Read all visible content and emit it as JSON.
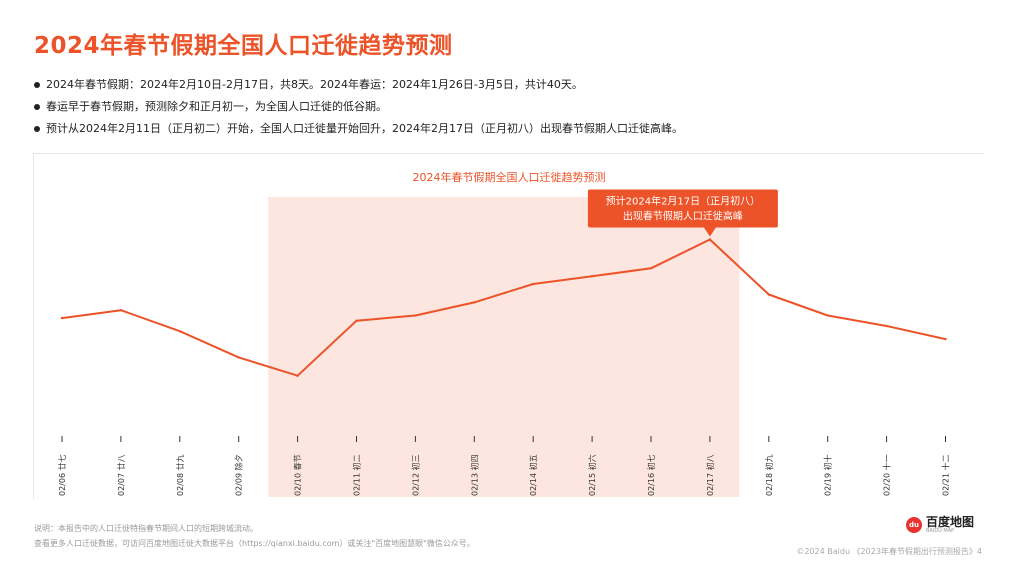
{
  "page": {
    "title": "2024年春节假期全国人口迁徙趋势预测",
    "bullets": [
      "2024年春节假期：2024年2月10日-2月17日，共8天。2024年春运：2024年1月26日-3月5日，共计40天。",
      "春运早于春节假期，预测除夕和正月初一，为全国人口迁徙的低谷期。",
      "预计从2024年2月11日（正月初二）开始，全国人口迁徙量开始回升，2024年2月17日（正月初八）出现春节假期人口迁徙高峰。"
    ],
    "footnotes": [
      "说明：本报告中的人口迁徙特指春节期间人口的短期跨城流动。",
      "查看更多人口迁徙数据，可访问百度地图迁徙大数据平台（https://qianxi.baidu.com）或关注\"百度地图慧眼\"微信公众号。"
    ],
    "logo_text": "百度地图",
    "logo_sub": "BAIDU MAP",
    "logo_mark": "du",
    "footer": "©2024 Baidu 《2023年春节假期出行预测报告》4"
  },
  "colors": {
    "accent": "#ec5328",
    "highlight_band": "#fde6df",
    "axis": "#333333"
  },
  "chart_data": {
    "type": "line",
    "title": "2024年春节假期全国人口迁徙趋势预测",
    "x": [
      "02/06 廿七",
      "02/07 廿八",
      "02/08 廿九",
      "02/09 除夕",
      "02/10 春节",
      "02/11 初二",
      "02/12 初三",
      "02/13 初四",
      "02/14 初五",
      "02/15 初六",
      "02/16 初七",
      "02/17 初八",
      "02/18 初九",
      "02/19 初十",
      "02/20 十一",
      "02/21 十二"
    ],
    "series": [
      {
        "values": [
          45,
          48,
          40,
          30,
          23,
          44,
          46,
          51,
          58,
          61,
          64,
          75,
          54,
          46,
          42,
          37
        ]
      }
    ],
    "ylim": [
      0,
      100
    ],
    "grid": false,
    "highlight_range": [
      "02/10 春节",
      "02/17 初八"
    ],
    "annotation": {
      "x": "02/17 初八",
      "lines": [
        "预计2024年2月17日（正月初八）",
        "出现春节假期人口迁徙高峰"
      ]
    }
  }
}
